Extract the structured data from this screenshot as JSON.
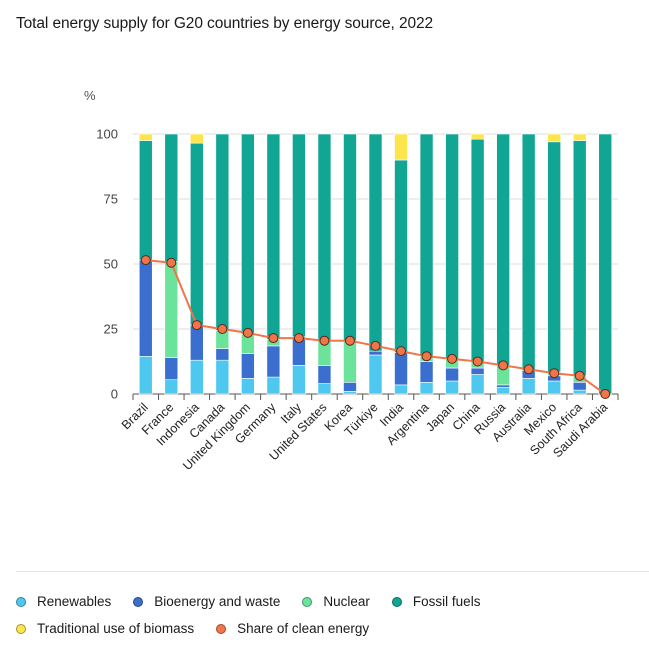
{
  "title": "Total energy supply for G20 countries by energy source, 2022",
  "chart_data": {
    "type": "bar",
    "stacked": true,
    "unit_label": "%",
    "ylim": [
      0,
      100
    ],
    "yticks": [
      0,
      25,
      50,
      75,
      100
    ],
    "grid": true,
    "categories": [
      "Brazil",
      "France",
      "Indonesia",
      "Canada",
      "United Kingdom",
      "Germany",
      "Italy",
      "United States",
      "Korea",
      "Türkiye",
      "India",
      "Argentina",
      "Japan",
      "China",
      "Russia",
      "Australia",
      "Mexico",
      "South Africa",
      "Saudi Arabia"
    ],
    "series": [
      {
        "name": "Renewables",
        "color": "#4fc8f0",
        "values": [
          14.5,
          5.5,
          13,
          13,
          6,
          6.5,
          11,
          4,
          1,
          15,
          3.5,
          4.5,
          5,
          7.5,
          2.5,
          6,
          5,
          1.5,
          0
        ]
      },
      {
        "name": "Bioenergy and waste",
        "color": "#3a6fcf",
        "values": [
          37,
          8.5,
          13.5,
          4.5,
          9.5,
          12,
          11,
          7,
          3.5,
          1.5,
          12.5,
          8,
          5,
          2.5,
          1,
          3,
          2,
          3,
          0
        ]
      },
      {
        "name": "Nuclear",
        "color": "#6be39a",
        "values": [
          0,
          37,
          0,
          7,
          7.5,
          2.5,
          0,
          9.5,
          16,
          0,
          0,
          2,
          3.5,
          2.5,
          7.5,
          0,
          1.5,
          2.5,
          0
        ]
      },
      {
        "name": "Fossil fuels",
        "color": "#11a593",
        "values": [
          46,
          49,
          70,
          75.5,
          77,
          79,
          78,
          79.5,
          79.5,
          83.5,
          74,
          85.5,
          86.5,
          85.5,
          89,
          91,
          88.5,
          90.5,
          100
        ]
      },
      {
        "name": "Traditional use of biomass",
        "color": "#fde54d",
        "values": [
          2.5,
          0,
          3.5,
          0,
          0,
          0,
          0,
          0,
          0,
          0,
          10,
          0,
          0,
          2,
          0,
          0,
          3,
          2.5,
          0
        ]
      }
    ],
    "line_series": {
      "name": "Share of clean energy",
      "color": "#f0764a",
      "values": [
        51.5,
        50.5,
        26.5,
        25,
        23.5,
        21.5,
        21.5,
        20.5,
        20.5,
        18.5,
        16.5,
        14.5,
        13.5,
        12.5,
        11,
        9.5,
        8,
        7,
        0
      ]
    }
  },
  "legend": [
    [
      {
        "label": "Renewables",
        "color": "#4fc8f0"
      },
      {
        "label": "Bioenergy and waste",
        "color": "#3a6fcf"
      },
      {
        "label": "Nuclear",
        "color": "#6be39a"
      },
      {
        "label": "Fossil fuels",
        "color": "#11a593"
      }
    ],
    [
      {
        "label": "Traditional use of biomass",
        "color": "#fde54d"
      },
      {
        "label": "Share of clean energy",
        "color": "#f0764a"
      }
    ]
  ]
}
